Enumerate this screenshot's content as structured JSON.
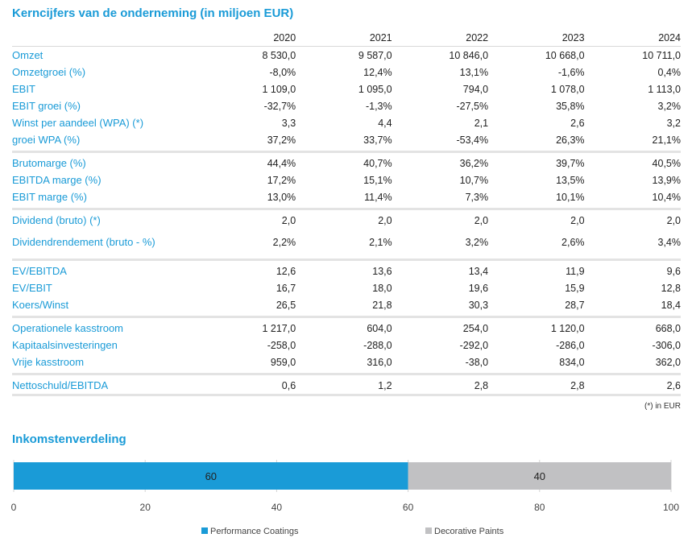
{
  "title": "Kerncijfers van de onderneming (in miljoen EUR)",
  "years": [
    "2020",
    "2021",
    "2022",
    "2023",
    "2024"
  ],
  "groups": [
    [
      {
        "label": "Omzet",
        "values": [
          "8 530,0",
          "9 587,0",
          "10 846,0",
          "10 668,0",
          "10 711,0"
        ]
      },
      {
        "label": "Omzetgroei (%)",
        "values": [
          "-8,0%",
          "12,4%",
          "13,1%",
          "-1,6%",
          "0,4%"
        ]
      },
      {
        "label": "EBIT",
        "values": [
          "1 109,0",
          "1 095,0",
          "794,0",
          "1 078,0",
          "1 113,0"
        ]
      },
      {
        "label": "EBIT groei (%)",
        "values": [
          "-32,7%",
          "-1,3%",
          "-27,5%",
          "35,8%",
          "3,2%"
        ]
      },
      {
        "label": "Winst per aandeel (WPA) (*)",
        "values": [
          "3,3",
          "4,4",
          "2,1",
          "2,6",
          "3,2"
        ]
      },
      {
        "label": "groei WPA (%)",
        "values": [
          "37,2%",
          "33,7%",
          "-53,4%",
          "26,3%",
          "21,1%"
        ]
      }
    ],
    [
      {
        "label": "Brutomarge (%)",
        "values": [
          "44,4%",
          "40,7%",
          "36,2%",
          "39,7%",
          "40,5%"
        ]
      },
      {
        "label": "EBITDA marge (%)",
        "values": [
          "17,2%",
          "15,1%",
          "10,7%",
          "13,5%",
          "13,9%"
        ]
      },
      {
        "label": "EBIT marge (%)",
        "values": [
          "13,0%",
          "11,4%",
          "7,3%",
          "10,1%",
          "10,4%"
        ]
      }
    ],
    [
      {
        "label": "Dividend (bruto) (*)",
        "values": [
          "2,0",
          "2,0",
          "2,0",
          "2,0",
          "2,0"
        ]
      },
      {
        "label": "Dividendrendement (bruto - %)",
        "values": [
          "2,2%",
          "2,1%",
          "3,2%",
          "2,6%",
          "3,4%"
        ],
        "twoLine": true
      }
    ],
    [
      {
        "label": "EV/EBITDA",
        "values": [
          "12,6",
          "13,6",
          "13,4",
          "11,9",
          "9,6"
        ]
      },
      {
        "label": "EV/EBIT",
        "values": [
          "16,7",
          "18,0",
          "19,6",
          "15,9",
          "12,8"
        ]
      },
      {
        "label": "Koers/Winst",
        "values": [
          "26,5",
          "21,8",
          "30,3",
          "28,7",
          "18,4"
        ]
      }
    ],
    [
      {
        "label": "Operationele kasstroom",
        "values": [
          "1 217,0",
          "604,0",
          "254,0",
          "1 120,0",
          "668,0"
        ]
      },
      {
        "label": "Kapitaalsinvesteringen",
        "values": [
          "-258,0",
          "-288,0",
          "-292,0",
          "-286,0",
          "-306,0"
        ]
      },
      {
        "label": "Vrije kasstroom",
        "values": [
          "959,0",
          "316,0",
          "-38,0",
          "834,0",
          "362,0"
        ]
      }
    ],
    [
      {
        "label": "Nettoschuld/EBITDA",
        "values": [
          "0,6",
          "1,2",
          "2,8",
          "2,8",
          "2,6"
        ]
      }
    ]
  ],
  "footnote": "(*) in EUR",
  "income": {
    "title": "Inkomstenverdeling"
  },
  "chart_data": {
    "type": "bar",
    "orientation": "horizontal-stacked",
    "series": [
      {
        "name": "Performance Coatings",
        "values": [
          60
        ],
        "color": "#1a9bd7",
        "label": "60"
      },
      {
        "name": "Decorative Paints",
        "values": [
          40
        ],
        "color": "#c1c1c3",
        "label": "40"
      }
    ],
    "xlim": [
      0,
      100
    ],
    "xticks": [
      "0",
      "20",
      "40",
      "60",
      "80",
      "100"
    ],
    "grid": true,
    "legend": "bottom"
  }
}
